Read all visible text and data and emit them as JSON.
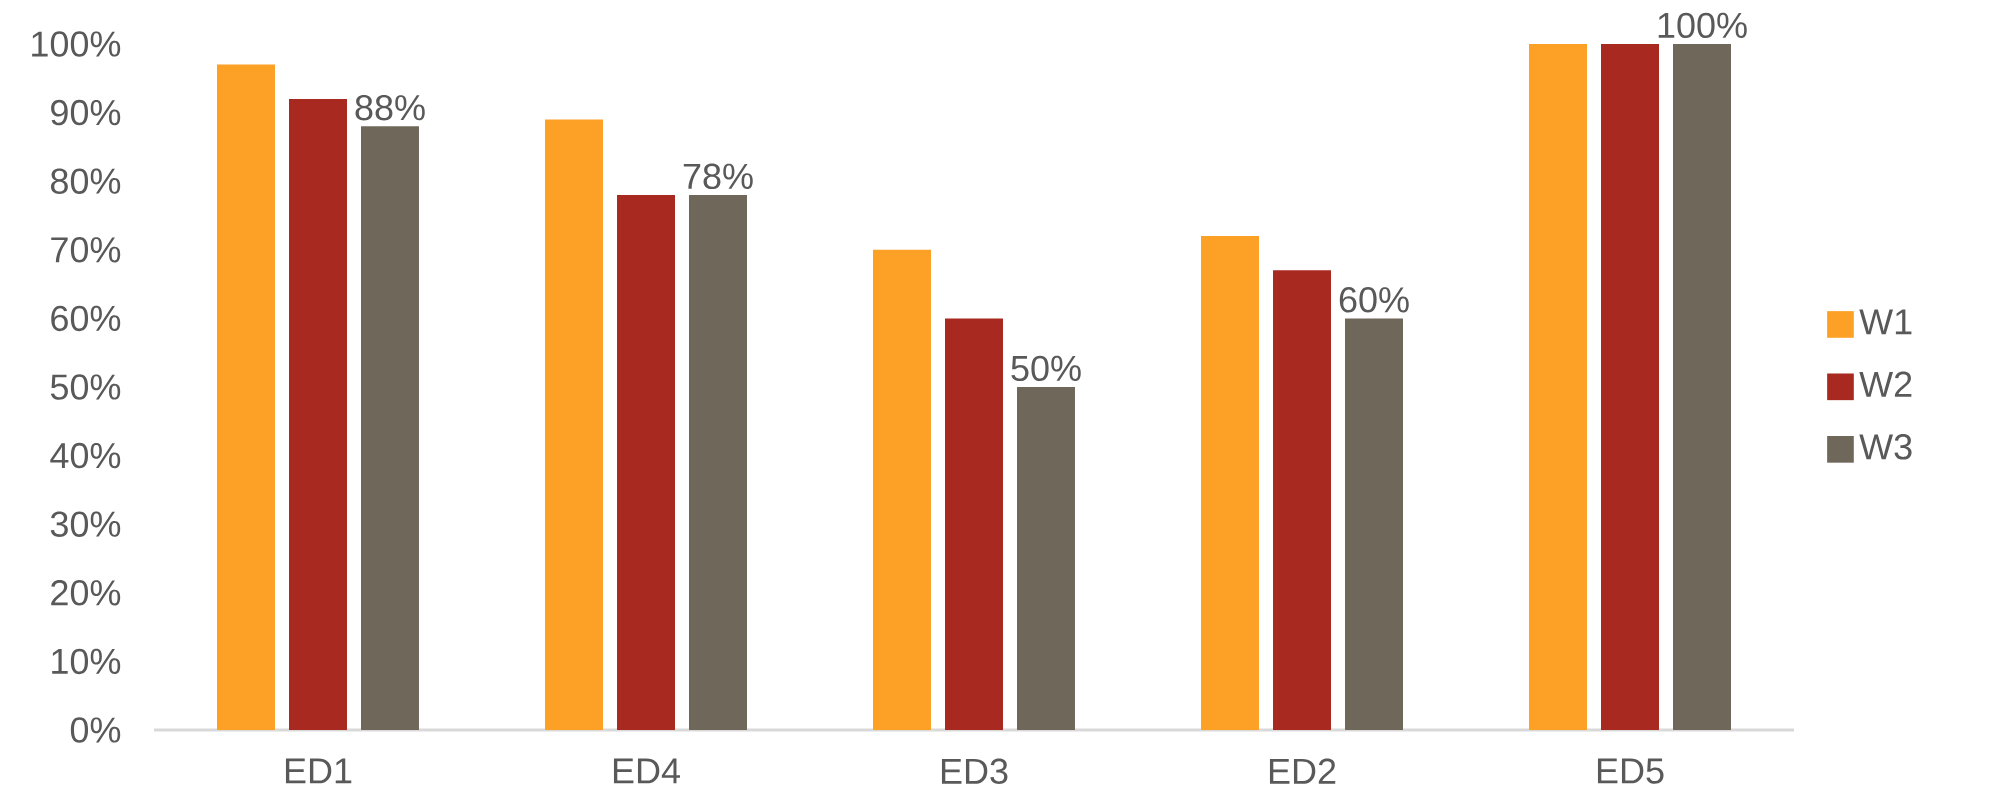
{
  "chart_data": {
    "type": "bar",
    "categories": [
      "ED1",
      "ED4",
      "ED3",
      "ED2",
      "ED5"
    ],
    "series": [
      {
        "name": "W1",
        "color": "#fca126",
        "values": [
          97,
          89,
          70,
          72,
          100
        ]
      },
      {
        "name": "W2",
        "color": "#a8291f",
        "values": [
          92,
          78,
          60,
          67,
          100
        ]
      },
      {
        "name": "W3",
        "color": "#70675b",
        "values": [
          88,
          78,
          50,
          60,
          100
        ],
        "value_labels": [
          "88%",
          "78%",
          "50%",
          "60%",
          "100%"
        ]
      }
    ],
    "ylim": [
      0,
      100
    ],
    "yticks": [
      {
        "value": 0,
        "label": "0%"
      },
      {
        "value": 10,
        "label": "10%"
      },
      {
        "value": 20,
        "label": "20%"
      },
      {
        "value": 30,
        "label": "30%"
      },
      {
        "value": 40,
        "label": "40%"
      },
      {
        "value": 50,
        "label": "50%"
      },
      {
        "value": 60,
        "label": "60%"
      },
      {
        "value": 70,
        "label": "70%"
      },
      {
        "value": 80,
        "label": "80%"
      },
      {
        "value": 90,
        "label": "90%"
      },
      {
        "value": 100,
        "label": "100%"
      }
    ],
    "legend": "right"
  }
}
